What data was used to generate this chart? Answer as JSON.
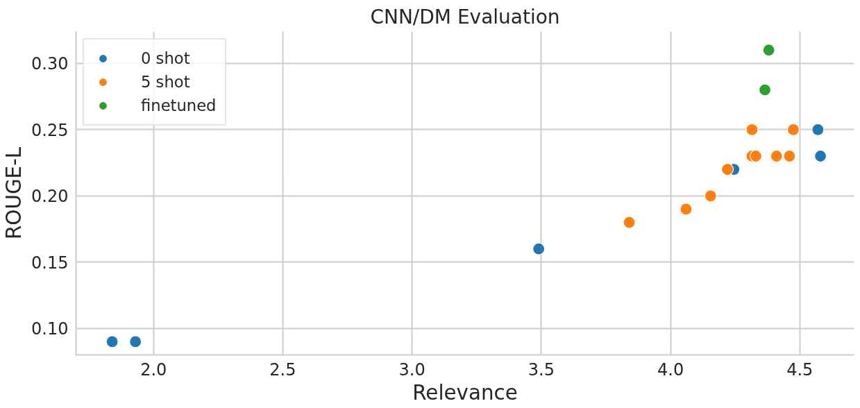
{
  "chart_data": {
    "type": "scatter",
    "title": "CNN/DM Evaluation",
    "xlabel": "Relevance",
    "ylabel": "ROUGE-L",
    "xlim": [
      1.7,
      4.71
    ],
    "ylim": [
      0.08,
      0.324
    ],
    "xticks": [
      {
        "value": 2.0,
        "label": "2.0"
      },
      2.5,
      {
        "value": 3.0,
        "label": "3.0"
      },
      3.5,
      {
        "value": 4.0,
        "label": "4.0"
      },
      4.5
    ],
    "yticks": [
      {
        "value": 0.1,
        "label": "0.10"
      },
      0.15,
      {
        "value": 0.2,
        "label": "0.20"
      },
      0.25,
      {
        "value": 0.3,
        "label": "0.30"
      }
    ],
    "grid": true,
    "legend": "top left",
    "marker": "circle",
    "series": [
      {
        "name": "0 shot",
        "color": "#1f77b4",
        "x": [
          1.84,
          1.93,
          3.49,
          4.245,
          4.57,
          4.58
        ],
        "values": [
          0.09,
          0.09,
          0.16,
          0.22,
          0.25,
          0.23
        ]
      },
      {
        "name": "5 shot",
        "color": "#ff7f0e",
        "x": [
          3.84,
          4.06,
          4.155,
          4.22,
          4.315,
          4.315,
          4.33,
          4.41,
          4.46,
          4.475
        ],
        "values": [
          0.18,
          0.19,
          0.2,
          0.22,
          0.25,
          0.23,
          0.23,
          0.23,
          0.23,
          0.25
        ]
      },
      {
        "name": "finetuned",
        "color": "#2ca02c",
        "x": [
          4.38,
          4.365
        ],
        "values": [
          0.31,
          0.28
        ]
      }
    ]
  }
}
